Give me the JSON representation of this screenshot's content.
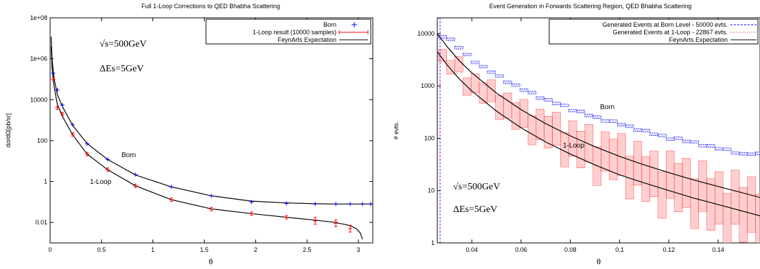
{
  "chart_data": [
    {
      "type": "line",
      "title": "Full 1-Loop Corrections to QED Bhabha Scattering",
      "xlabel": "θ",
      "ylabel": "dσ/dΩ[pb/sr]",
      "yscale": "log",
      "xlim": [
        0,
        3.14
      ],
      "ylim": [
        0.001,
        100000000
      ],
      "xticks": [
        "0",
        "0.5",
        "1",
        "1.5",
        "2",
        "2.5",
        "3"
      ],
      "xtick_values": [
        0,
        0.5,
        1,
        1.5,
        2,
        2.5,
        3
      ],
      "yticks": [
        "0.01",
        "1",
        "100",
        "10000",
        "1e+06",
        "1e+08"
      ],
      "ytick_values": [
        0.01,
        1,
        100,
        10000,
        1000000,
        100000000
      ],
      "legend_position": "top-right",
      "legend": [
        "Born",
        "1-Loop result (10000 samples)",
        "FeynArts Expectation"
      ],
      "annotations": {
        "sqrt_s": "√s=500GeV",
        "delta_e": "ΔEs=5GeV",
        "born_label": "Born",
        "loop_label": "1-Loop"
      },
      "series": [
        {
          "name": "Born",
          "marker": "plus",
          "color": "#0000ff",
          "x": [
            0.03,
            0.07,
            0.12,
            0.22,
            0.36,
            0.56,
            0.83,
            1.18,
            1.57,
            1.96,
            2.3,
            2.58,
            2.78,
            2.92,
            3.04,
            3.12
          ],
          "y": [
            200000,
            30000,
            5500,
            600,
            70,
            12,
            2.2,
            0.55,
            0.2,
            0.1,
            0.085,
            0.08,
            0.08,
            0.08,
            0.08,
            0.08
          ]
        },
        {
          "name": "1-Loop result (10000 samples)",
          "marker": "plus-errorbar",
          "color": "#ff0000",
          "x": [
            0.03,
            0.07,
            0.12,
            0.22,
            0.36,
            0.56,
            0.83,
            1.18,
            1.57,
            1.96,
            2.3,
            2.58,
            2.78,
            2.92
          ],
          "y": [
            100000,
            4000,
            2000,
            200,
            22,
            3.8,
            0.62,
            0.13,
            0.045,
            0.027,
            0.018,
            0.012,
            0.009,
            0.005
          ]
        },
        {
          "name": "FeynArts Expectation",
          "style": "line",
          "color": "#000000",
          "curves": [
            {
              "x": [
                0.01,
                0.02,
                0.04,
                0.07,
                0.12,
                0.22,
                0.36,
                0.56,
                0.83,
                1.18,
                1.57,
                1.96,
                2.3,
                2.58,
                2.78,
                2.92,
                3.04,
                3.14
              ],
              "y": [
                12000000,
                800000,
                100000,
                18000,
                4500,
                550,
                72,
                12,
                2.1,
                0.55,
                0.2,
                0.11,
                0.09,
                0.082,
                0.08,
                0.08,
                0.08,
                0.08
              ]
            },
            {
              "x": [
                0.01,
                0.02,
                0.04,
                0.07,
                0.12,
                0.22,
                0.36,
                0.56,
                0.83,
                1.18,
                1.57,
                1.96,
                2.3,
                2.58,
                2.78,
                2.92,
                2.98,
                3.02,
                3.04
              ],
              "y": [
                4000000,
                300000,
                40000,
                6000,
                1500,
                190,
                22,
                3.8,
                0.62,
                0.13,
                0.046,
                0.027,
                0.018,
                0.013,
                0.01,
                0.007,
                0.005,
                0.003,
                0.0015
              ]
            }
          ]
        }
      ]
    },
    {
      "type": "line",
      "title": "Event Generation in Forwards Scattering Region, QED Bhabha Scattering",
      "xlabel": "θ",
      "ylabel": "# evts.",
      "yscale": "log",
      "xlim": [
        0.026,
        0.157
      ],
      "ylim": [
        1,
        20000
      ],
      "xticks": [
        "0.04",
        "0.06",
        "0.08",
        "0.1",
        "0.12",
        "0.14"
      ],
      "xtick_values": [
        0.04,
        0.06,
        0.08,
        0.1,
        0.12,
        0.14
      ],
      "yticks": [
        "1",
        "10",
        "100",
        "1000",
        "10000"
      ],
      "ytick_values": [
        1,
        10,
        100,
        1000,
        10000
      ],
      "legend_position": "top-right",
      "legend": [
        "Generated Events at Born Level - 50000 evts.",
        "Generated Events at 1-Loop - 22867 evts.",
        "FeynArts Expectation"
      ],
      "annotations": {
        "sqrt_s": "√s=500GeV",
        "delta_e": "ΔEs=5GeV",
        "born_label": "Born",
        "loop_label": "1-Loop"
      },
      "series": [
        {
          "name": "Generated Events at Born Level - 50000 evts.",
          "style": "histogram-dashed",
          "color": "#0000ff",
          "x": [
            0.03,
            0.04,
            0.05,
            0.06,
            0.07,
            0.08,
            0.09,
            0.1,
            0.11,
            0.12,
            0.13,
            0.14,
            0.15
          ],
          "y": [
            9000,
            3200,
            1600,
            900,
            560,
            370,
            260,
            190,
            140,
            105,
            85,
            65,
            50
          ]
        },
        {
          "name": "Generated Events at 1-Loop - 22867 evts.",
          "style": "histogram-dotted-band",
          "color": "#ff0000",
          "x": [
            0.03,
            0.04,
            0.05,
            0.06,
            0.07,
            0.08,
            0.09,
            0.1,
            0.11,
            0.12,
            0.13,
            0.14,
            0.15
          ],
          "y": [
            4200,
            1400,
            700,
            330,
            180,
            110,
            75,
            48,
            30,
            20,
            14,
            10,
            6
          ]
        },
        {
          "name": "FeynArts Expectation",
          "style": "line",
          "color": "#000000",
          "curves": [
            {
              "x": [
                0.026,
                0.03,
                0.035,
                0.04,
                0.05,
                0.06,
                0.07,
                0.08,
                0.09,
                0.1,
                0.11,
                0.12,
                0.13,
                0.14,
                0.157
              ],
              "y": [
                10000,
                5600,
                3000,
                1780,
                730,
                352,
                190,
                111,
                69,
                45,
                31,
                22,
                16,
                12,
                7.4
              ]
            },
            {
              "x": [
                0.026,
                0.03,
                0.035,
                0.04,
                0.05,
                0.06,
                0.07,
                0.08,
                0.09,
                0.1,
                0.11,
                0.12,
                0.13,
                0.14,
                0.157
              ],
              "y": [
                4500,
                2500,
                1350,
                800,
                330,
                158,
                85,
                50,
                31,
                20,
                14,
                10,
                7.2,
                5.4,
                3.3
              ]
            }
          ]
        }
      ]
    }
  ]
}
